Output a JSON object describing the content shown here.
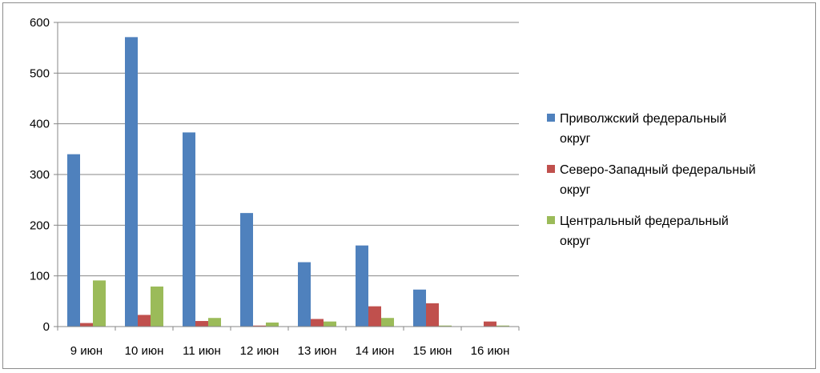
{
  "chart_data": {
    "type": "bar",
    "title": "",
    "xlabel": "",
    "ylabel": "",
    "categories": [
      "9 июн",
      "10 июн",
      "11 июн",
      "12 июн",
      "13 июн",
      "14 июн",
      "15 июн",
      "16 июн"
    ],
    "ylim": [
      0,
      600
    ],
    "yticks": [
      0,
      100,
      200,
      300,
      400,
      500,
      600
    ],
    "grid": true,
    "legend_position": "right",
    "series": [
      {
        "name_lines": [
          "Приволжский федеральный",
          "округ"
        ],
        "color": "#4f81bd",
        "values": [
          340,
          571,
          383,
          224,
          127,
          160,
          73,
          0
        ]
      },
      {
        "name_lines": [
          "Северо-Западный федеральный",
          "округ"
        ],
        "color": "#c0504d",
        "values": [
          7,
          23,
          11,
          2,
          15,
          40,
          46,
          10
        ]
      },
      {
        "name_lines": [
          "Центральный федеральный",
          "округ"
        ],
        "color": "#9bbb59",
        "values": [
          91,
          79,
          17,
          8,
          10,
          17,
          2,
          2
        ]
      }
    ]
  }
}
